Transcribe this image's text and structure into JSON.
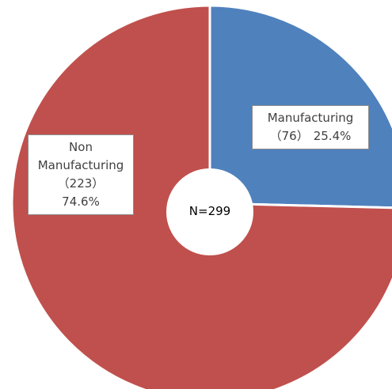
{
  "chart_data": {
    "type": "donut",
    "categories": [
      "Manufacturing",
      "Non Manufacturing"
    ],
    "values": [
      25.4,
      74.6
    ],
    "value_labels": [
      "25.4%",
      "74.6%"
    ],
    "count_labels": [
      "（76）",
      "（223）"
    ],
    "colors": [
      "#4f81bd",
      "#c0504d"
    ],
    "center_label": "N=299"
  }
}
